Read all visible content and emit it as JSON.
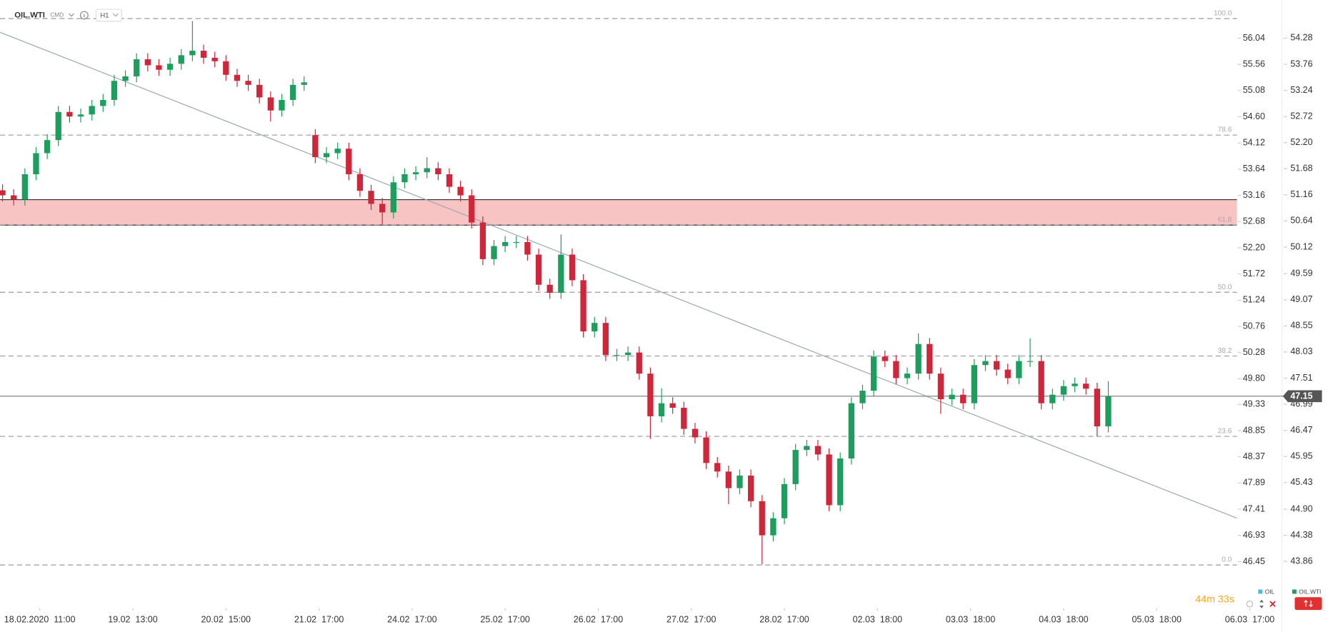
{
  "chart_data": {
    "type": "candlestick",
    "symbol": "OIL.WTI",
    "market": "CMD",
    "interval": "H1",
    "timer": "44m 33s",
    "up_color": "#1e9e5e",
    "down_color": "#d0263a",
    "legend": [
      {
        "name": "OIL",
        "color": "#4fb8e6"
      },
      {
        "name": "OIL.WTI",
        "color": "#1e9e5e"
      }
    ],
    "last_price": 47.15,
    "xlim": [
      0,
      340
    ],
    "xticks": [
      {
        "value": 10,
        "label": "18.02.2020  11:00"
      },
      {
        "value": 35,
        "label": "19.02  13:00"
      },
      {
        "value": 60,
        "label": "20.02  15:00"
      },
      {
        "value": 85,
        "label": "21.02  17:00"
      },
      {
        "value": 110,
        "label": "24.02  17:00"
      },
      {
        "value": 135,
        "label": "25.02  17:00"
      },
      {
        "value": 160,
        "label": "26.02  17:00"
      },
      {
        "value": 185,
        "label": "27.02  17:00"
      },
      {
        "value": 210,
        "label": "28.02  17:00"
      },
      {
        "value": 235,
        "label": "02.03  18:00"
      },
      {
        "value": 260,
        "label": "03.03  18:00"
      },
      {
        "value": 285,
        "label": "04.03  18:00"
      },
      {
        "value": 310,
        "label": "05.03  18:00"
      },
      {
        "value": 335,
        "label": "06.03  17:00"
      }
    ],
    "ylim": [
      43.03,
      55.04
    ],
    "yticks": [
      54.28,
      53.76,
      53.24,
      52.72,
      {
        "value": 52.2,
        "label": "52.20"
      },
      51.68,
      51.16,
      50.64,
      50.12,
      49.59,
      49.07,
      48.55,
      48.03,
      47.51,
      46.99,
      46.47,
      45.95,
      45.43,
      {
        "value": 44.9,
        "label": "44.90"
      },
      44.38,
      43.86
    ],
    "y2lim": [
      45.69,
      56.74
    ],
    "y2ticks": [
      56.04,
      55.56,
      55.08,
      {
        "value": 54.6,
        "label": "54.60"
      },
      54.12,
      53.64,
      53.16,
      52.68,
      {
        "value": 52.2,
        "label": "52.20"
      },
      51.72,
      51.24,
      50.76,
      50.28,
      {
        "value": 49.8,
        "label": "49.80"
      },
      49.33,
      48.85,
      48.37,
      47.89,
      47.41,
      46.93,
      46.45
    ],
    "fib_levels": [
      {
        "label": "100.0",
        "price": 54.67
      },
      {
        "label": "78.6",
        "price": 52.35
      },
      {
        "label": "61.8",
        "price": 50.56
      },
      {
        "label": "50.0",
        "price": 49.22
      },
      {
        "label": "38.2",
        "price": 47.95
      },
      {
        "label": "23.6",
        "price": 46.35
      },
      {
        "label": "0.0",
        "price": 43.79
      }
    ],
    "candles": {
      "x": [
        0,
        3,
        6,
        9,
        12,
        15,
        18,
        21,
        24,
        27,
        30,
        33,
        36,
        39,
        42,
        45,
        48,
        51,
        54,
        57,
        60,
        63,
        66,
        69,
        72,
        75,
        78,
        81,
        84,
        87,
        90,
        93,
        96,
        99,
        102,
        105,
        108,
        111,
        114,
        117,
        120,
        123,
        126,
        129,
        132,
        135,
        138,
        141,
        144,
        147,
        150,
        153,
        156,
        159,
        162,
        165,
        168,
        171,
        174,
        177,
        180,
        183,
        186,
        189,
        192,
        195,
        198,
        201,
        204,
        207,
        210,
        213,
        216,
        219,
        222,
        225,
        228,
        231,
        234,
        237,
        240,
        243,
        246,
        249,
        252,
        255,
        258,
        261,
        264,
        267,
        270,
        273,
        276,
        279,
        282,
        285,
        288,
        291,
        294,
        297
      ],
      "open": [
        51.25,
        51.15,
        51.07,
        51.57,
        51.99,
        52.25,
        52.81,
        52.72,
        52.76,
        52.93,
        53.05,
        53.43,
        53.52,
        53.86,
        53.74,
        53.65,
        53.77,
        53.94,
        54.03,
        53.89,
        53.82,
        53.55,
        53.43,
        53.35,
        53.1,
        52.84,
        53.05,
        53.35,
        52.35,
        51.91,
        51.99,
        52.08,
        51.57,
        51.24,
        50.98,
        50.81,
        51.41,
        51.57,
        51.61,
        51.69,
        51.57,
        51.32,
        51.15,
        50.61,
        49.88,
        50.14,
        50.22,
        50.22,
        49.97,
        49.37,
        49.21,
        49.97,
        49.46,
        48.44,
        48.61,
        47.97,
        47.97,
        48.02,
        47.6,
        46.75,
        47.01,
        46.92,
        46.5,
        46.33,
        45.82,
        45.65,
        45.32,
        45.57,
        45.06,
        44.38,
        44.72,
        45.4,
        46.08,
        46.16,
        45.99,
        44.98,
        45.91,
        47.01,
        47.26,
        47.94,
        47.85,
        47.51,
        47.6,
        48.19,
        47.6,
        47.09,
        47.18,
        47.01,
        47.77,
        47.85,
        47.68,
        47.51,
        47.85,
        47.85,
        47.01,
        47.18,
        47.35,
        47.4,
        47.3,
        46.55
      ],
      "high": [
        51.37,
        51.27,
        51.69,
        52.11,
        52.37,
        52.93,
        52.93,
        52.88,
        53.05,
        53.17,
        53.55,
        53.64,
        53.98,
        53.98,
        53.86,
        53.89,
        54.06,
        54.62,
        54.15,
        54.01,
        53.94,
        53.67,
        53.55,
        53.47,
        53.22,
        53.17,
        53.47,
        53.52,
        52.47,
        52.11,
        52.2,
        52.2,
        51.69,
        51.36,
        51.1,
        51.53,
        51.69,
        51.73,
        51.91,
        51.81,
        51.69,
        51.44,
        51.27,
        50.73,
        50.26,
        50.34,
        50.34,
        50.34,
        50.09,
        49.49,
        50.37,
        50.09,
        49.58,
        48.73,
        48.73,
        48.09,
        48.14,
        48.14,
        47.72,
        47.31,
        47.13,
        47.04,
        46.62,
        46.45,
        45.94,
        45.77,
        45.69,
        45.69,
        45.18,
        44.84,
        45.52,
        46.2,
        46.28,
        46.28,
        46.11,
        46.03,
        47.13,
        47.38,
        48.06,
        48.06,
        47.97,
        47.72,
        48.4,
        48.31,
        47.72,
        47.3,
        47.3,
        47.89,
        47.97,
        47.97,
        47.8,
        47.97,
        48.3,
        47.97,
        47.3,
        47.47,
        47.52,
        47.52,
        47.42,
        47.45
      ],
      "low": [
        51.03,
        50.95,
        50.95,
        51.45,
        51.87,
        52.13,
        52.6,
        52.6,
        52.64,
        52.81,
        52.93,
        53.31,
        53.4,
        53.62,
        53.53,
        53.53,
        53.65,
        53.82,
        53.77,
        53.7,
        53.43,
        53.31,
        53.23,
        52.98,
        52.62,
        52.72,
        52.93,
        53.23,
        51.79,
        51.79,
        51.87,
        51.45,
        51.12,
        50.86,
        50.55,
        50.69,
        51.29,
        51.45,
        51.49,
        51.45,
        51.2,
        51.03,
        50.49,
        49.76,
        49.76,
        50.02,
        50.1,
        49.85,
        49.25,
        49.09,
        49.09,
        49.34,
        48.32,
        48.32,
        47.85,
        47.85,
        47.85,
        47.48,
        46.3,
        46.63,
        46.8,
        46.38,
        46.21,
        45.7,
        45.53,
        45.0,
        45.2,
        44.94,
        43.8,
        44.26,
        44.6,
        45.28,
        45.96,
        45.87,
        44.86,
        44.86,
        45.79,
        46.89,
        47.14,
        47.73,
        47.39,
        47.39,
        47.48,
        47.48,
        46.8,
        46.97,
        46.89,
        46.89,
        47.65,
        47.56,
        47.39,
        47.39,
        47.73,
        46.89,
        46.89,
        47.06,
        47.23,
        47.18,
        46.35,
        46.43
      ],
      "close": [
        51.15,
        51.07,
        51.57,
        51.99,
        52.25,
        52.81,
        52.72,
        52.76,
        52.93,
        53.05,
        53.43,
        53.52,
        53.86,
        53.74,
        53.65,
        53.77,
        53.94,
        54.03,
        53.89,
        53.82,
        53.55,
        53.43,
        53.35,
        53.1,
        52.84,
        53.05,
        53.35,
        53.4,
        51.91,
        51.99,
        52.08,
        51.57,
        51.24,
        50.98,
        50.81,
        51.41,
        51.57,
        51.61,
        51.69,
        51.57,
        51.32,
        51.15,
        50.61,
        49.88,
        50.14,
        50.22,
        50.22,
        49.97,
        49.37,
        49.21,
        49.97,
        49.46,
        48.44,
        48.61,
        47.97,
        47.97,
        48.02,
        47.6,
        46.75,
        47.01,
        46.92,
        46.5,
        46.33,
        45.82,
        45.65,
        45.32,
        45.57,
        45.06,
        44.38,
        44.72,
        45.4,
        46.08,
        46.16,
        45.99,
        44.98,
        45.91,
        47.01,
        47.26,
        47.94,
        47.85,
        47.51,
        47.6,
        48.19,
        47.6,
        47.09,
        47.18,
        47.01,
        47.77,
        47.85,
        47.68,
        47.51,
        47.85,
        47.85,
        47.01,
        47.18,
        47.35,
        47.4,
        47.3,
        46.55,
        47.15
      ]
    }
  }
}
